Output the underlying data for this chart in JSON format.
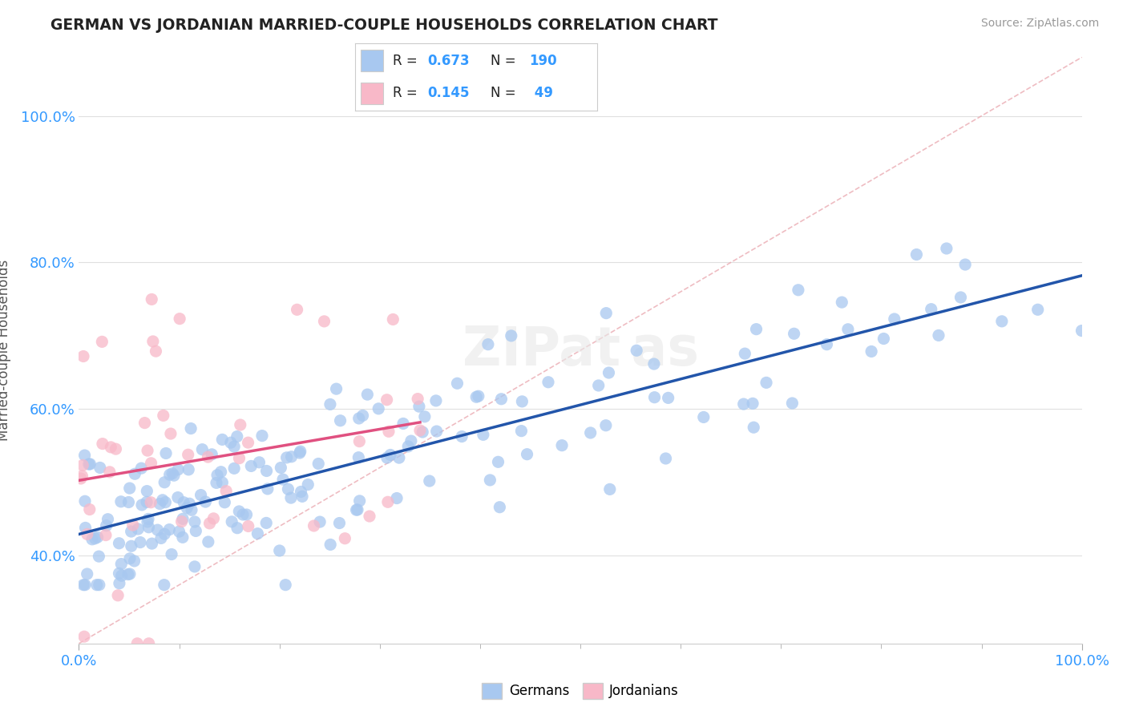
{
  "title": "GERMAN VS JORDANIAN MARRIED-COUPLE HOUSEHOLDS CORRELATION CHART",
  "source": "Source: ZipAtlas.com",
  "ylabel": "Married-couple Households",
  "background_color": "#ffffff",
  "german_scatter_color": "#a8c8f0",
  "jordanian_scatter_color": "#f8b8c8",
  "german_line_color": "#2255aa",
  "jordanian_line_color": "#e05080",
  "diagonal_color": "#ddbbbb",
  "axis_label_color": "#3399ff",
  "title_color": "#222222",
  "ytick_labels": [
    "40.0%",
    "60.0%",
    "80.0%",
    "100.0%"
  ],
  "ytick_vals": [
    0.4,
    0.6,
    0.8,
    1.0
  ],
  "grid_color": "#e0e0e0",
  "watermark_color": "#dddddd",
  "legend_R_german": "0.673",
  "legend_N_german": "190",
  "legend_R_jordan": "0.145",
  "legend_N_jordan": " 49"
}
